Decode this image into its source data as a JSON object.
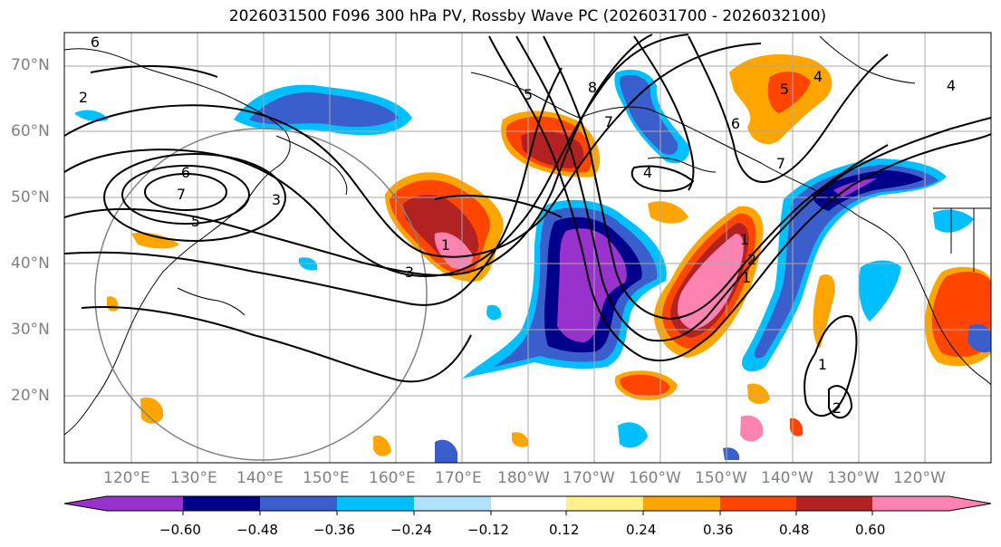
{
  "title": "2026031500 F096 300 hPa PV, Rossby Wave PC (2026031700 - 2026032100)",
  "latitude_labels": [
    "70°N",
    "60°N",
    "50°N",
    "40°N",
    "30°N",
    "20°N"
  ],
  "longitude_labels": [
    "120°E",
    "130°E",
    "140°E",
    "150°E",
    "160°E",
    "170°E",
    "180°W",
    "170°W",
    "160°W",
    "150°W",
    "140°W",
    "130°W",
    "120°W"
  ],
  "colorbar": {
    "tick_labels": [
      "−0.60",
      "−0.48",
      "−0.36",
      "−0.24",
      "−0.12",
      "0.12",
      "0.24",
      "0.36",
      "0.48",
      "0.60"
    ],
    "colors": [
      "#9932cc",
      "#00008b",
      "#3a5fcd",
      "#00bfff",
      "#b0e2ff",
      "#ffffff",
      "#fff08b",
      "#ffa500",
      "#ff4500",
      "#b22222",
      "#ff83b0"
    ]
  },
  "contour_labels": [
    "6",
    "7",
    "5",
    "3",
    "1",
    "4",
    "8",
    "7",
    "6",
    "5",
    "4",
    "3",
    "2",
    "1",
    "7",
    "6",
    "5",
    "1",
    "2",
    "1",
    "2",
    "4"
  ]
}
